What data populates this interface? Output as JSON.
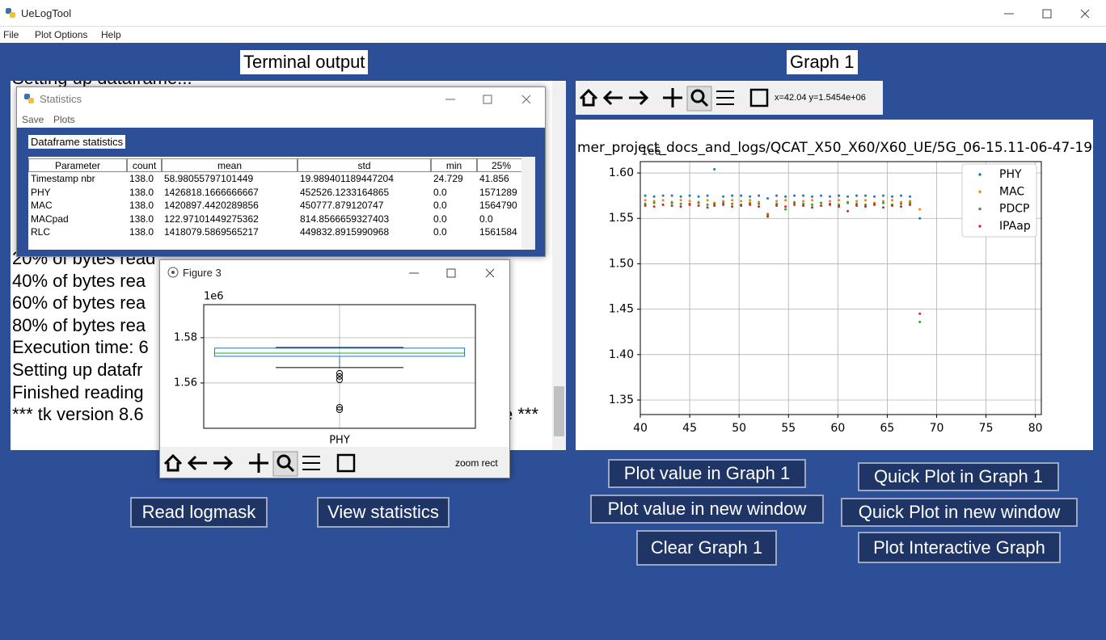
{
  "window": {
    "title": "UeLogTool",
    "menu": [
      "File",
      "Plot Options",
      "Help"
    ]
  },
  "terminal": {
    "label": "Terminal output",
    "lines": [
      "Setting up dataframe...",
      "20% of bytes read",
      "40% of bytes rea",
      "60% of bytes rea",
      "80% of bytes rea",
      "Execution time: 6",
      "Setting up datafr",
      "Finished reading",
      "*** tk version 8.6"
    ],
    "line_tail": "e ***"
  },
  "graph1": {
    "label": "Graph 1",
    "coords": "x=42.04 y=1.5454e+06"
  },
  "buttons": [
    "Read logmask",
    "View statistics",
    "Plot value in Graph 1",
    "Quick Plot in Graph 1",
    "Plot value in new window",
    "Quick Plot in new window",
    "Clear Graph 1",
    "Plot Interactive Graph"
  ],
  "statistics_window": {
    "title": "Statistics",
    "menu": [
      "Save",
      "Plots"
    ],
    "label": "Dataframe statistics",
    "table": {
      "header": [
        "Parameter",
        "count",
        "mean",
        "std",
        "min",
        "25%"
      ],
      "rows": [
        [
          "Timestamp nbr",
          "138.0",
          "58.98055797101449",
          "19.989401189447204",
          "24.729",
          "41.856"
        ],
        [
          "PHY",
          "138.0",
          "1426818.1666666667",
          "452526.1233164865",
          "0.0",
          "1571289"
        ],
        [
          "MAC",
          "138.0",
          "1420897.4420289856",
          "450777.879120747",
          "0.0",
          "1564790"
        ],
        [
          "MACpad",
          "138.0",
          "122.97101449275362",
          "814.8566659327403",
          "0.0",
          "0.0"
        ],
        [
          "RLC",
          "138.0",
          "1418079.5869565217",
          "449832.8915990968",
          "0.0",
          "1561584"
        ]
      ]
    }
  },
  "figure3": {
    "title": "Figure 3",
    "status": "zoom rect"
  },
  "chart_data": [
    {
      "type": "scatter",
      "title": "mer_project_docs_and_logs/QCAT_X50_X60/X60_UE/5G_06-15.11-06-47-19",
      "offset_label": "1e6",
      "x": [
        40.5,
        41.4,
        42.3,
        43.2,
        44.1,
        45.0,
        45.9,
        46.8,
        47.5,
        48.4,
        49.3,
        50.2,
        51.1,
        52.0,
        52.9,
        53.8,
        54.7,
        55.6,
        56.5,
        57.4,
        58.3,
        59.2,
        60.1,
        61.0,
        61.9,
        62.8,
        63.7,
        64.6,
        65.5,
        66.4,
        67.3,
        68.3
      ],
      "series": [
        {
          "name": "PHY",
          "color": "#1f77b4",
          "values": [
            1.575,
            1.574,
            1.575,
            1.575,
            1.574,
            1.575,
            1.574,
            1.575,
            1.604,
            1.574,
            1.575,
            1.575,
            1.574,
            1.575,
            1.572,
            1.575,
            1.574,
            1.575,
            1.575,
            1.574,
            1.575,
            1.574,
            1.575,
            1.574,
            1.575,
            1.575,
            1.574,
            1.575,
            1.574,
            1.575,
            1.574,
            1.55
          ]
        },
        {
          "name": "MAC",
          "color": "#ff7f0e",
          "values": [
            1.57,
            1.569,
            1.57,
            1.568,
            1.57,
            1.569,
            1.568,
            1.57,
            1.567,
            1.569,
            1.57,
            1.569,
            1.57,
            1.568,
            1.555,
            1.569,
            1.57,
            1.568,
            1.569,
            1.57,
            1.567,
            1.569,
            1.57,
            1.568,
            1.569,
            1.57,
            1.567,
            1.569,
            1.57,
            1.568,
            1.569,
            1.56
          ]
        },
        {
          "name": "PDCP",
          "color": "#2ca02c",
          "values": [
            1.566,
            1.567,
            1.565,
            1.567,
            1.566,
            1.566,
            1.567,
            1.565,
            1.566,
            1.567,
            1.566,
            1.565,
            1.567,
            1.566,
            1.554,
            1.566,
            1.56,
            1.567,
            1.566,
            1.565,
            1.567,
            1.566,
            1.565,
            1.567,
            1.566,
            1.565,
            1.566,
            1.567,
            1.565,
            1.566,
            1.567,
            1.436
          ]
        },
        {
          "name": "IPAap",
          "color": "#d62728",
          "values": [
            1.564,
            1.563,
            1.565,
            1.564,
            1.563,
            1.565,
            1.564,
            1.562,
            1.564,
            1.565,
            1.563,
            1.564,
            1.565,
            1.563,
            1.552,
            1.564,
            1.563,
            1.565,
            1.564,
            1.562,
            1.564,
            1.565,
            1.563,
            1.558,
            1.564,
            1.563,
            1.565,
            1.562,
            1.564,
            1.563,
            1.565,
            1.445
          ]
        }
      ],
      "xlim": [
        40,
        80.6
      ],
      "ylim": [
        1.334,
        1.6125
      ],
      "xticks": [
        40,
        45,
        50,
        55,
        60,
        65,
        70,
        75,
        80
      ],
      "yticks": [
        1.35,
        {
          "value": 1.4,
          "label": "1.40"
        },
        1.45,
        {
          "value": 1.5,
          "label": "1.50"
        },
        1.55,
        {
          "value": 1.6,
          "label": "1.60"
        }
      ],
      "grid": true,
      "legend": "upper right"
    },
    {
      "type": "box",
      "offset_label": "1e6",
      "categories": [
        "PHY"
      ],
      "q1": [
        1.5718
      ],
      "median": [
        1.5732
      ],
      "q3": [
        1.5754
      ],
      "whislo": [
        1.5668
      ],
      "whishi": [
        1.5757
      ],
      "fliers": [
        [
          1.5643,
          1.5629,
          1.5614,
          1.5493,
          1.5482
        ]
      ],
      "ylim": [
        1.54,
        1.5946
      ],
      "yticks": [
        1.56,
        1.58
      ],
      "grid": true,
      "box_color": "#1f77b4",
      "median_color": "#2ca02c"
    }
  ]
}
